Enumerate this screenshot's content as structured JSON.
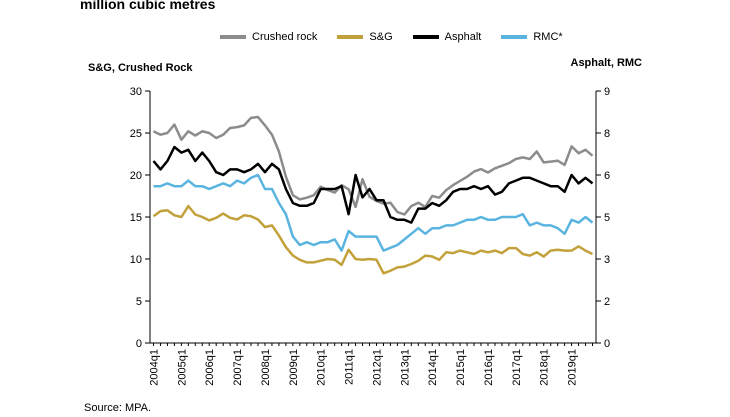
{
  "title": "million cubic metres",
  "source": "Source: MPA.",
  "chart_data": {
    "type": "line",
    "left_axis_title": "S&G, Crushed Rock",
    "right_axis_title": "Asphalt, RMC",
    "left_ylim": [
      0,
      30
    ],
    "right_ylim": [
      0,
      9
    ],
    "left_ticks": [
      "0",
      "5",
      "10",
      "15",
      "20",
      "25",
      "30"
    ],
    "right_ticks": [
      "0",
      "2",
      "3",
      "5",
      "6",
      "8",
      "9"
    ],
    "right_tick_values": [
      0,
      1.5,
      3,
      4.5,
      6,
      7.5,
      9
    ],
    "x_start": "2004q1",
    "x_tick_labels": [
      "2004q1",
      "2005q1",
      "2006q1",
      "2007q1",
      "2008q1",
      "2009q1",
      "2010q1",
      "2011q1",
      "2012q1",
      "2013q1",
      "2014q1",
      "2015q1",
      "2016q1",
      "2017q1",
      "2018q1",
      "2019q1"
    ],
    "legend_position": "top",
    "grid": false,
    "series": [
      {
        "name": "Crushed rock",
        "axis": "left",
        "color": "#8c8c8c",
        "values": [
          25.2,
          24.8,
          25.0,
          26.0,
          24.2,
          25.2,
          24.7,
          25.2,
          25.0,
          24.4,
          24.8,
          25.6,
          25.7,
          25.9,
          26.8,
          26.9,
          25.9,
          24.8,
          22.8,
          19.8,
          17.6,
          17.1,
          17.3,
          17.6,
          18.6,
          18.2,
          17.9,
          18.8,
          18.3,
          16.2,
          19.5,
          17.4,
          16.9,
          16.6,
          16.7,
          15.6,
          15.3,
          16.3,
          16.7,
          16.2,
          17.5,
          17.3,
          18.2,
          18.8,
          19.3,
          19.8,
          20.4,
          20.7,
          20.3,
          20.8,
          21.1,
          21.4,
          21.9,
          22.1,
          21.9,
          22.8,
          21.5,
          21.6,
          21.7,
          21.2,
          23.4,
          22.6,
          23.0,
          22.3
        ]
      },
      {
        "name": "S&G",
        "axis": "left",
        "color": "#c2a13b",
        "values": [
          15.1,
          15.7,
          15.8,
          15.2,
          15.0,
          16.3,
          15.3,
          15.0,
          14.6,
          14.9,
          15.4,
          14.9,
          14.7,
          15.2,
          15.1,
          14.7,
          13.8,
          14.0,
          12.8,
          11.4,
          10.4,
          9.9,
          9.6,
          9.6,
          9.8,
          10.0,
          9.9,
          9.3,
          11.1,
          10.0,
          9.9,
          10.0,
          9.9,
          8.3,
          8.6,
          9.0,
          9.1,
          9.4,
          9.8,
          10.4,
          10.3,
          9.9,
          10.8,
          10.7,
          11.0,
          10.8,
          10.6,
          11.0,
          10.8,
          11.0,
          10.7,
          11.3,
          11.3,
          10.6,
          10.4,
          10.8,
          10.3,
          11.0,
          11.1,
          11.0,
          11.0,
          11.5,
          11.0,
          10.6
        ]
      },
      {
        "name": "Asphalt",
        "axis": "right",
        "color": "#000000",
        "values": [
          6.5,
          6.2,
          6.5,
          7.0,
          6.8,
          6.9,
          6.5,
          6.8,
          6.5,
          6.1,
          6.0,
          6.2,
          6.2,
          6.1,
          6.2,
          6.4,
          6.1,
          6.4,
          6.2,
          5.5,
          5.0,
          4.9,
          4.9,
          5.0,
          5.5,
          5.5,
          5.5,
          5.6,
          4.6,
          6.0,
          5.2,
          5.5,
          5.1,
          5.1,
          4.5,
          4.4,
          4.4,
          4.3,
          4.8,
          4.8,
          5.0,
          4.9,
          5.1,
          5.4,
          5.5,
          5.5,
          5.6,
          5.5,
          5.6,
          5.3,
          5.4,
          5.7,
          5.8,
          5.9,
          5.9,
          5.8,
          5.7,
          5.6,
          5.6,
          5.4,
          6.0,
          5.7,
          5.9,
          5.7
        ]
      },
      {
        "name": "RMC*",
        "axis": "right",
        "color": "#5ab4e0",
        "values": [
          5.6,
          5.6,
          5.7,
          5.6,
          5.6,
          5.8,
          5.6,
          5.6,
          5.5,
          5.6,
          5.7,
          5.6,
          5.8,
          5.7,
          5.9,
          6.0,
          5.5,
          5.5,
          5.0,
          4.6,
          3.8,
          3.5,
          3.6,
          3.5,
          3.6,
          3.6,
          3.7,
          3.3,
          4.0,
          3.8,
          3.8,
          3.8,
          3.8,
          3.3,
          3.4,
          3.5,
          3.7,
          3.9,
          4.1,
          3.9,
          4.1,
          4.1,
          4.2,
          4.2,
          4.3,
          4.4,
          4.4,
          4.5,
          4.4,
          4.4,
          4.5,
          4.5,
          4.5,
          4.6,
          4.2,
          4.3,
          4.2,
          4.2,
          4.1,
          3.9,
          4.4,
          4.3,
          4.5,
          4.3
        ]
      }
    ]
  }
}
